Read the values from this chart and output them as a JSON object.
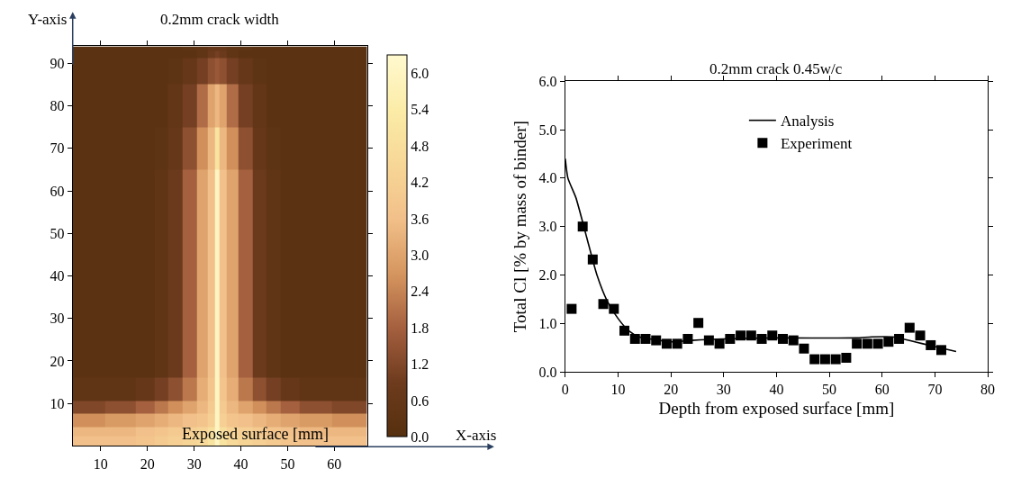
{
  "chart_data": [
    {
      "type": "heatmap",
      "title": "0.2mm crack width",
      "xlabel": "X-axis",
      "ylabel": "Y-axis",
      "annotations": [
        "Exposed surface [mm]"
      ],
      "x": [
        5,
        7,
        15,
        20,
        23,
        26,
        29,
        32,
        34,
        35,
        36,
        38,
        41,
        44,
        47,
        50,
        55,
        64,
        66
      ],
      "y": [
        0.5,
        1.5,
        3,
        6,
        9,
        12,
        20,
        40,
        60,
        70,
        80,
        90,
        92.5,
        93.5
      ],
      "cells": [
        [
          3.6,
          3.6,
          3.6,
          3.8,
          4.0,
          4.2,
          4.4,
          4.6,
          5.0,
          6.0,
          5.0,
          4.6,
          4.4,
          4.2,
          4.0,
          3.8,
          3.6,
          3.6,
          3.6
        ],
        [
          3.6,
          3.6,
          3.6,
          3.8,
          4.0,
          4.2,
          4.4,
          4.6,
          5.0,
          6.0,
          5.0,
          4.6,
          4.4,
          4.2,
          4.0,
          3.8,
          3.6,
          3.6,
          3.6
        ],
        [
          3.4,
          3.4,
          3.4,
          3.6,
          3.8,
          4.0,
          4.2,
          4.4,
          4.8,
          6.0,
          4.8,
          4.4,
          4.2,
          4.0,
          3.8,
          3.6,
          3.4,
          3.4,
          3.4
        ],
        [
          2.6,
          2.6,
          2.8,
          3.0,
          3.2,
          3.4,
          3.6,
          3.8,
          4.2,
          6.0,
          4.2,
          3.8,
          3.6,
          3.4,
          3.2,
          3.0,
          2.8,
          2.6,
          2.6
        ],
        [
          1.2,
          1.2,
          1.4,
          1.8,
          2.2,
          2.6,
          3.0,
          3.4,
          4.0,
          6.0,
          4.0,
          3.4,
          3.0,
          2.6,
          2.2,
          1.8,
          1.4,
          1.2,
          1.2
        ],
        [
          0.4,
          0.4,
          0.4,
          0.6,
          1.0,
          1.4,
          2.2,
          3.2,
          3.8,
          6.0,
          3.8,
          3.2,
          2.2,
          1.4,
          1.0,
          0.6,
          0.4,
          0.4,
          0.4
        ],
        [
          0.2,
          0.2,
          0.2,
          0.2,
          0.4,
          0.8,
          1.8,
          3.0,
          3.6,
          6.0,
          3.6,
          3.0,
          1.8,
          0.8,
          0.4,
          0.2,
          0.2,
          0.2,
          0.2
        ],
        [
          0.2,
          0.2,
          0.2,
          0.2,
          0.4,
          0.8,
          1.8,
          3.0,
          3.6,
          6.0,
          3.6,
          3.0,
          1.8,
          0.8,
          0.4,
          0.2,
          0.2,
          0.2,
          0.2
        ],
        [
          0.2,
          0.2,
          0.2,
          0.2,
          0.4,
          0.8,
          1.8,
          3.0,
          3.6,
          6.0,
          3.6,
          3.0,
          1.8,
          0.8,
          0.4,
          0.2,
          0.2,
          0.2,
          0.2
        ],
        [
          0.2,
          0.2,
          0.2,
          0.2,
          0.3,
          0.6,
          1.4,
          2.6,
          3.4,
          5.0,
          3.4,
          2.6,
          1.4,
          0.6,
          0.3,
          0.2,
          0.2,
          0.2,
          0.2
        ],
        [
          0.2,
          0.2,
          0.2,
          0.2,
          0.2,
          0.5,
          1.0,
          2.0,
          3.0,
          3.4,
          3.0,
          2.0,
          1.0,
          0.5,
          0.2,
          0.2,
          0.2,
          0.2,
          0.2
        ],
        [
          0.2,
          0.2,
          0.2,
          0.2,
          0.2,
          0.3,
          0.6,
          1.0,
          1.4,
          1.6,
          1.4,
          1.0,
          0.6,
          0.3,
          0.2,
          0.2,
          0.2,
          0.2,
          0.2
        ],
        [
          0.2,
          0.2,
          0.2,
          0.2,
          0.2,
          0.2,
          0.2,
          0.4,
          0.8,
          1.0,
          0.8,
          0.4,
          0.2,
          0.2,
          0.2,
          0.2,
          0.2,
          0.2,
          0.2
        ],
        [
          0.2,
          0.2,
          0.2,
          0.2,
          0.2,
          0.2,
          0.3,
          0.4,
          0.6,
          0.6,
          0.6,
          0.4,
          0.3,
          0.2,
          0.2,
          0.2,
          0.2,
          0.2,
          0.2
        ]
      ],
      "colors": [
        "#55300f",
        "#6e3b1e",
        "#a5603f",
        "#d6965f",
        "#f2c08a",
        "#f7d797",
        "#fbeca8",
        "#fff9cf"
      ],
      "clim": [
        0,
        6.3
      ],
      "cticks": [
        {
          "value": 0,
          "label": "0.0"
        },
        0.6,
        1.2,
        1.8,
        2.4,
        {
          "value": 3,
          "label": "3.0"
        },
        3.6,
        4.2,
        4.8,
        5.4,
        {
          "value": 6,
          "label": "6.0"
        }
      ],
      "xlim": [
        4,
        67
      ],
      "ylim": [
        0,
        94
      ],
      "xticks": [
        10,
        20,
        30,
        40,
        50,
        60
      ],
      "yticks": [
        10,
        20,
        30,
        40,
        50,
        60,
        70,
        80,
        90
      ]
    },
    {
      "type": "line",
      "title": "0.2mm crack 0.45w/c",
      "xlabel": "Depth from exposed surface [mm]",
      "ylabel": "Total Cl [% by mass of binder]",
      "series": [
        {
          "name": "Analysis",
          "type": "line",
          "color": "#000000",
          "marker": "none",
          "x": [
            0,
            0.5,
            2,
            4,
            6,
            8,
            10,
            12,
            14,
            16,
            20,
            24,
            30,
            40,
            55,
            58,
            62,
            65,
            70,
            74
          ],
          "values": [
            4.4,
            4.0,
            3.6,
            2.8,
            2.0,
            1.45,
            1.1,
            0.85,
            0.72,
            0.68,
            0.62,
            0.65,
            0.68,
            0.7,
            0.7,
            0.72,
            0.72,
            0.65,
            0.52,
            0.42
          ]
        },
        {
          "name": "Experiment",
          "type": "scatter",
          "color": "#000000",
          "marker": "square",
          "x": [
            1.2,
            3.3,
            5.2,
            7.2,
            9.2,
            11.2,
            13.2,
            15.2,
            17.2,
            19.2,
            21.2,
            23.2,
            25.2,
            27.2,
            29.2,
            31.2,
            33.2,
            35.2,
            37.2,
            39.2,
            41.2,
            43.2,
            45.2,
            47.2,
            49.2,
            51.2,
            53.2,
            55.2,
            57.2,
            59.2,
            61.2,
            63.2,
            65.2,
            67.2,
            69.2,
            71.2
          ],
          "values": [
            1.3,
            3.0,
            2.32,
            1.4,
            1.3,
            0.85,
            0.68,
            0.68,
            0.65,
            0.58,
            0.58,
            0.68,
            1.01,
            0.65,
            0.58,
            0.68,
            0.75,
            0.75,
            0.68,
            0.75,
            0.68,
            0.65,
            0.48,
            0.26,
            0.26,
            0.26,
            0.29,
            0.58,
            0.58,
            0.58,
            0.62,
            0.68,
            0.91,
            0.75,
            0.55,
            0.45
          ]
        }
      ],
      "xlim": [
        0,
        80
      ],
      "ylim": [
        0,
        6
      ],
      "xticks": [
        0,
        10,
        20,
        30,
        40,
        50,
        60,
        70,
        80
      ],
      "yticks": [
        {
          "value": 0,
          "label": "0.0"
        },
        {
          "value": 1,
          "label": "1.0"
        },
        {
          "value": 2,
          "label": "2.0"
        },
        {
          "value": 3,
          "label": "3.0"
        },
        {
          "value": 4,
          "label": "4.0"
        },
        {
          "value": 5,
          "label": "5.0"
        },
        {
          "value": 6,
          "label": "6.0"
        }
      ],
      "legend": "top right"
    }
  ]
}
